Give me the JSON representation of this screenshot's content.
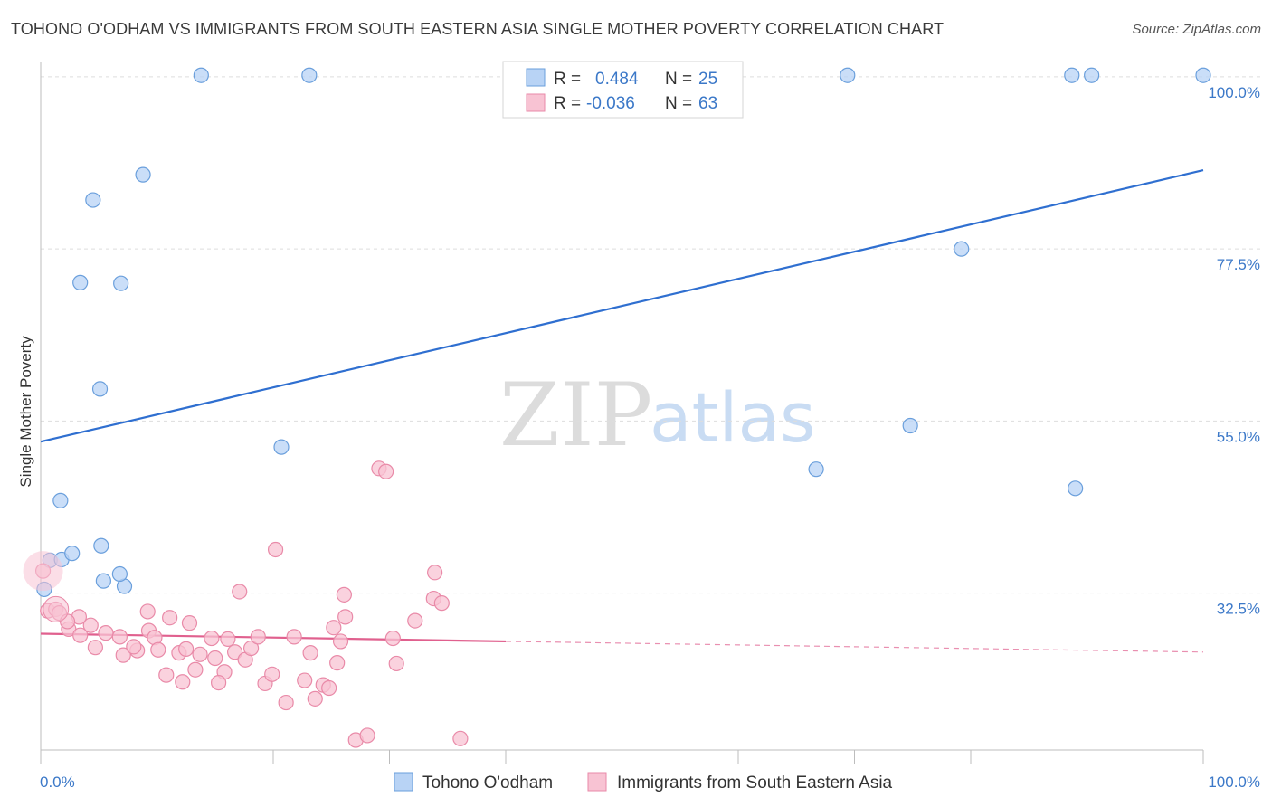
{
  "title": "TOHONO O'ODHAM VS IMMIGRANTS FROM SOUTH EASTERN ASIA SINGLE MOTHER POVERTY CORRELATION CHART",
  "source": "Source: ZipAtlas.com",
  "watermark": {
    "zip": "ZIP",
    "atlas": "atlas"
  },
  "colors": {
    "blue_fill": "#b8d3f5",
    "blue_stroke": "#6a9fdc",
    "blue_line": "#2f6fd0",
    "pink_fill": "#f8c3d3",
    "pink_stroke": "#e98aa8",
    "pink_line": "#e0608e",
    "grid": "#dddddd",
    "tick_text": "#3b78c8"
  },
  "chart_data": {
    "type": "scatter",
    "title": "TOHONO O'ODHAM VS IMMIGRANTS FROM SOUTH EASTERN ASIA SINGLE MOTHER POVERTY CORRELATION CHART",
    "xlabel": "",
    "ylabel": "Single Mother Poverty",
    "xlim": [
      0,
      100
    ],
    "ylim": [
      12,
      102
    ],
    "x_tick_labels": [
      "0.0%",
      "100.0%"
    ],
    "y_ticks": [
      {
        "value": 32.5,
        "label": "32.5%"
      },
      {
        "value": 55.0,
        "label": "55.0%"
      },
      {
        "value": 77.5,
        "label": "77.5%"
      },
      {
        "value": 100.0,
        "label": "100.0%"
      }
    ],
    "grid": "horizontal dashed",
    "legend_position": "bottom",
    "stats": [
      {
        "r_label": "R =",
        "r_value": "0.484",
        "n_label": "N =",
        "n_value": "25"
      },
      {
        "r_label": "R =",
        "r_value": "-0.036",
        "n_label": "N =",
        "n_value": "63"
      }
    ],
    "series": [
      {
        "name": "Tohono O'odham",
        "color": "#b8d3f5",
        "trend": {
          "x": [
            0,
            100
          ],
          "y": [
            52.3,
            87.8
          ],
          "style": "solid"
        },
        "points": [
          [
            0.3,
            33
          ],
          [
            0.8,
            36.8
          ],
          [
            1.8,
            36.9
          ],
          [
            1.7,
            44.6
          ],
          [
            2.7,
            37.7
          ],
          [
            4.5,
            83.9
          ],
          [
            3.4,
            73.1
          ],
          [
            5.1,
            59.2
          ],
          [
            6.9,
            73
          ],
          [
            5.4,
            34.1
          ],
          [
            5.2,
            38.7
          ],
          [
            7.2,
            33.4
          ],
          [
            6.8,
            35
          ],
          [
            8.8,
            87.2
          ],
          [
            13.8,
            100.2
          ],
          [
            23.1,
            100.2
          ],
          [
            20.7,
            51.6
          ],
          [
            69.4,
            100.2
          ],
          [
            79.2,
            77.5
          ],
          [
            66.7,
            48.7
          ],
          [
            74.8,
            54.4
          ],
          [
            88.7,
            100.2
          ],
          [
            90.4,
            100.2
          ],
          [
            100,
            100.2
          ],
          [
            89,
            46.2
          ]
        ]
      },
      {
        "name": "Immigrants from South Eastern Asia",
        "color": "#f8c3d3",
        "trend": {
          "x": [
            0,
            40
          ],
          "y": [
            27.2,
            26.2
          ],
          "style": "solid",
          "extension_x": [
            40,
            100
          ],
          "extension_y": [
            26.2,
            24.8
          ],
          "extension_style": "dashed"
        },
        "points": [
          [
            0.2,
            35.4
          ],
          [
            0.6,
            30.2
          ],
          [
            1.3,
            30.4
          ],
          [
            1.6,
            29.9
          ],
          [
            2.4,
            27.8
          ],
          [
            3.4,
            27
          ],
          [
            3.3,
            29.4
          ],
          [
            4.3,
            28.3
          ],
          [
            4.7,
            25.4
          ],
          [
            5.6,
            27.3
          ],
          [
            6.8,
            26.8
          ],
          [
            7.1,
            24.4
          ],
          [
            8.3,
            25
          ],
          [
            9.3,
            27.6
          ],
          [
            9.8,
            26.7
          ],
          [
            9.2,
            30.1
          ],
          [
            10.1,
            25.1
          ],
          [
            11.1,
            29.3
          ],
          [
            10.8,
            21.8
          ],
          [
            11.9,
            24.7
          ],
          [
            12.8,
            28.6
          ],
          [
            13.7,
            24.5
          ],
          [
            12.5,
            25.2
          ],
          [
            12.2,
            20.9
          ],
          [
            13.3,
            22.5
          ],
          [
            14.7,
            26.6
          ],
          [
            15.8,
            22.2
          ],
          [
            15.3,
            20.8
          ],
          [
            16.1,
            26.5
          ],
          [
            16.7,
            24.8
          ],
          [
            17.6,
            23.8
          ],
          [
            17.1,
            32.7
          ],
          [
            18.1,
            25.3
          ],
          [
            18.7,
            26.8
          ],
          [
            19.3,
            20.7
          ],
          [
            19.9,
            21.9
          ],
          [
            20.2,
            38.2
          ],
          [
            21.1,
            18.2
          ],
          [
            21.8,
            26.8
          ],
          [
            22.7,
            21.1
          ],
          [
            23.2,
            24.7
          ],
          [
            23.6,
            18.7
          ],
          [
            24.3,
            20.5
          ],
          [
            25.5,
            23.4
          ],
          [
            25.2,
            28
          ],
          [
            24.8,
            20.1
          ],
          [
            26.1,
            32.3
          ],
          [
            27.1,
            13.3
          ],
          [
            28.1,
            13.9
          ],
          [
            29.1,
            48.8
          ],
          [
            29.7,
            48.4
          ],
          [
            30.6,
            23.3
          ],
          [
            30.3,
            26.6
          ],
          [
            32.2,
            28.9
          ],
          [
            33.9,
            35.2
          ],
          [
            33.8,
            31.8
          ],
          [
            34.5,
            31.2
          ],
          [
            36.1,
            13.5
          ],
          [
            25.8,
            26.2
          ],
          [
            26.2,
            29.4
          ],
          [
            8,
            25.5
          ],
          [
            15,
            24
          ],
          [
            2.3,
            28.8
          ]
        ]
      }
    ]
  }
}
